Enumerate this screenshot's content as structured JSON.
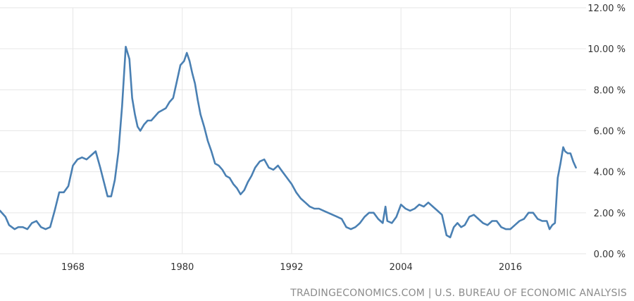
{
  "chart_data": {
    "type": "line",
    "title": "",
    "xlabel": "",
    "ylabel": "",
    "xlim": [
      1960,
      2023
    ],
    "ylim": [
      0,
      12
    ],
    "grid": true,
    "y_ticks": [
      {
        "value": 0,
        "label": "0.00 %"
      },
      {
        "value": 2,
        "label": "2.00 %"
      },
      {
        "value": 4,
        "label": "4.00 %"
      },
      {
        "value": 6,
        "label": "6.00 %"
      },
      {
        "value": 8,
        "label": "8.00 %"
      },
      {
        "value": 10,
        "label": "10.00 %"
      },
      {
        "value": 12,
        "label": "12.00 %"
      }
    ],
    "x_ticks": [
      {
        "value": 1968,
        "label": "1968"
      },
      {
        "value": 1980,
        "label": "1980"
      },
      {
        "value": 1992,
        "label": "1992"
      },
      {
        "value": 2004,
        "label": "2004"
      },
      {
        "value": 2016,
        "label": "2016"
      }
    ],
    "color": "#4a80b3",
    "series": [
      {
        "x": [
          1960.0,
          1960.6,
          1961.0,
          1961.6,
          1962.0,
          1962.5,
          1963.0,
          1963.5,
          1964.0,
          1964.5,
          1965.0,
          1965.5,
          1966.0,
          1966.5,
          1967.0,
          1967.5,
          1968.0,
          1968.5,
          1969.0,
          1969.5,
          1970.0,
          1970.5,
          1971.0,
          1971.4,
          1971.8,
          1972.2,
          1972.6,
          1973.0,
          1973.4,
          1973.8,
          1974.2,
          1974.5,
          1974.8,
          1975.1,
          1975.4,
          1975.8,
          1976.2,
          1976.6,
          1977.0,
          1977.4,
          1977.8,
          1978.2,
          1978.6,
          1979.0,
          1979.4,
          1979.8,
          1980.2,
          1980.5,
          1980.8,
          1981.1,
          1981.4,
          1981.7,
          1982.0,
          1982.4,
          1982.8,
          1983.2,
          1983.6,
          1984.0,
          1984.4,
          1984.8,
          1985.2,
          1985.6,
          1986.0,
          1986.4,
          1986.8,
          1987.2,
          1987.6,
          1988.0,
          1988.5,
          1989.0,
          1989.5,
          1990.0,
          1990.5,
          1991.0,
          1991.5,
          1992.0,
          1992.5,
          1993.0,
          1993.5,
          1994.0,
          1994.5,
          1995.0,
          1995.5,
          1996.0,
          1996.5,
          1997.0,
          1997.5,
          1998.0,
          1998.5,
          1999.0,
          1999.5,
          2000.0,
          2000.5,
          2001.0,
          2001.5,
          2002.0,
          2002.3,
          2002.5,
          2003.0,
          2003.5,
          2004.0,
          2004.5,
          2005.0,
          2005.5,
          2006.0,
          2006.5,
          2007.0,
          2007.5,
          2008.0,
          2008.5,
          2009.0,
          2009.4,
          2009.8,
          2010.2,
          2010.6,
          2011.0,
          2011.5,
          2012.0,
          2012.5,
          2013.0,
          2013.5,
          2014.0,
          2014.5,
          2015.0,
          2015.5,
          2016.0,
          2016.5,
          2017.0,
          2017.5,
          2018.0,
          2018.5,
          2019.0,
          2019.5,
          2020.0,
          2020.3,
          2020.6,
          2020.9,
          2021.2,
          2021.5,
          2021.8,
          2022.0,
          2022.3,
          2022.6,
          2022.9,
          2023.2
        ],
        "values": [
          2.1,
          1.8,
          1.4,
          1.2,
          1.3,
          1.3,
          1.2,
          1.5,
          1.6,
          1.3,
          1.2,
          1.3,
          2.1,
          3.0,
          3.0,
          3.3,
          4.3,
          4.6,
          4.7,
          4.6,
          4.8,
          5.0,
          4.2,
          3.5,
          2.8,
          2.8,
          3.6,
          5.0,
          7.2,
          10.1,
          9.5,
          7.6,
          6.8,
          6.2,
          6.0,
          6.3,
          6.5,
          6.5,
          6.7,
          6.9,
          7.0,
          7.1,
          7.4,
          7.6,
          8.4,
          9.2,
          9.4,
          9.8,
          9.4,
          8.8,
          8.3,
          7.5,
          6.8,
          6.2,
          5.5,
          5.0,
          4.4,
          4.3,
          4.1,
          3.8,
          3.7,
          3.4,
          3.2,
          2.9,
          3.1,
          3.5,
          3.8,
          4.2,
          4.5,
          4.6,
          4.2,
          4.1,
          4.3,
          4.0,
          3.7,
          3.4,
          3.0,
          2.7,
          2.5,
          2.3,
          2.2,
          2.2,
          2.1,
          2.0,
          1.9,
          1.8,
          1.7,
          1.3,
          1.2,
          1.3,
          1.5,
          1.8,
          2.0,
          2.0,
          1.7,
          1.5,
          2.3,
          1.6,
          1.5,
          1.8,
          2.4,
          2.2,
          2.1,
          2.2,
          2.4,
          2.3,
          2.5,
          2.3,
          2.1,
          1.9,
          0.9,
          0.8,
          1.3,
          1.5,
          1.3,
          1.4,
          1.8,
          1.9,
          1.7,
          1.5,
          1.4,
          1.6,
          1.6,
          1.3,
          1.2,
          1.2,
          1.4,
          1.6,
          1.7,
          2.0,
          2.0,
          1.7,
          1.6,
          1.6,
          1.2,
          1.4,
          1.5,
          3.7,
          4.4,
          5.2,
          5.0,
          4.9,
          4.9,
          4.5,
          4.2
        ]
      }
    ]
  },
  "source": "TRADINGECONOMICS.COM  |  U.S. BUREAU OF ECONOMIC ANALYSIS"
}
